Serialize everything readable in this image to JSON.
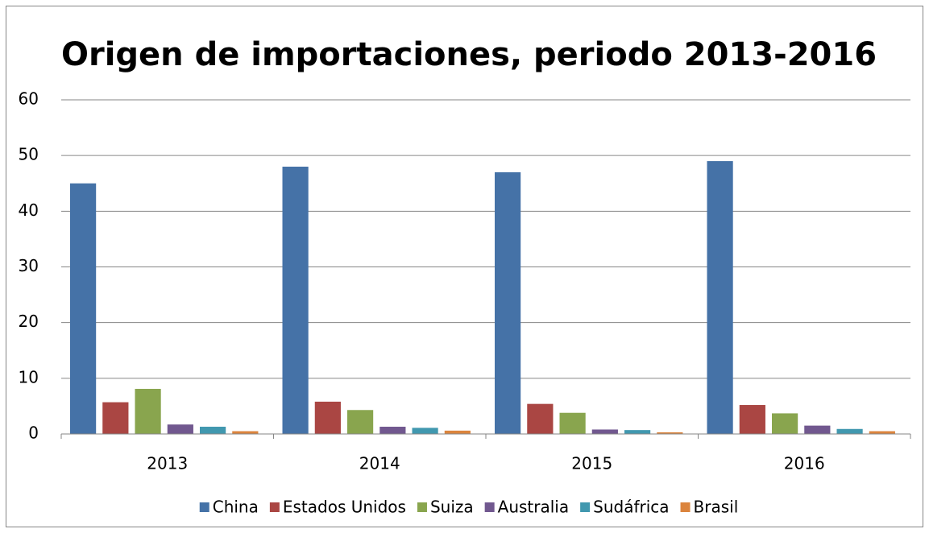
{
  "chart_data": {
    "type": "bar",
    "title": "Origen de importaciones, periodo 2013-2016",
    "categories": [
      "2013",
      "2014",
      "2015",
      "2016"
    ],
    "series": [
      {
        "name": "China",
        "color": "#4572A7",
        "values": [
          45,
          48,
          47,
          49
        ]
      },
      {
        "name": "Estados Unidos",
        "color": "#AA4643",
        "values": [
          5.7,
          5.8,
          5.4,
          5.2
        ]
      },
      {
        "name": "Suiza",
        "color": "#89A54E",
        "values": [
          8.1,
          4.3,
          3.8,
          3.7
        ]
      },
      {
        "name": "Australia",
        "color": "#71588F",
        "values": [
          1.7,
          1.3,
          0.8,
          1.5
        ]
      },
      {
        "name": "Sudáfrica",
        "color": "#4198AF",
        "values": [
          1.3,
          1.1,
          0.7,
          0.9
        ]
      },
      {
        "name": "Brasil",
        "color": "#DB843D",
        "values": [
          0.5,
          0.6,
          0.3,
          0.5
        ]
      }
    ],
    "ylim": [
      0,
      60
    ],
    "yticks": [
      0,
      10,
      20,
      30,
      40,
      50,
      60
    ],
    "grid": true,
    "legend": "bottom"
  }
}
